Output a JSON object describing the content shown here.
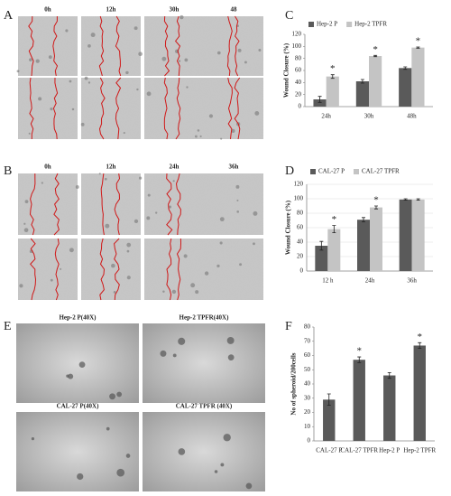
{
  "panel_labels": [
    "A",
    "B",
    "C",
    "D",
    "E",
    "F"
  ],
  "panel_a": {
    "time_labels": [
      "0h",
      "12h",
      "30h",
      "48"
    ]
  },
  "panel_b": {
    "time_labels": [
      "0h",
      "12h",
      "24h",
      "36h"
    ]
  },
  "panel_e": {
    "image_labels": [
      "Hep-2 P(40X)",
      "Hep-2 TPFR(40X)",
      "CAL-27 P(40X)",
      "CAL-27 TPFR (40X)"
    ]
  },
  "chart_data": [
    {
      "type": "bar",
      "y_label": "Wound Closure (%)",
      "categories": [
        "24h",
        "30h",
        "48h"
      ],
      "series": [
        {
          "name": "Hep-2 P",
          "color": "#5a5a5a",
          "values": [
            12,
            42,
            64
          ],
          "errors": [
            5,
            3,
            2
          ]
        },
        {
          "name": "Hep-2 TPFR",
          "color": "#c4c4c4",
          "values": [
            50,
            84,
            98
          ],
          "errors": [
            3,
            1,
            1
          ]
        }
      ],
      "annotations": [
        {
          "text": "*",
          "x": "24h",
          "series": "Hep-2 TPFR"
        },
        {
          "text": "*",
          "x": "30h",
          "series": "Hep-2 TPFR"
        },
        {
          "text": "*",
          "x": "48h",
          "series": "Hep-2 TPFR"
        }
      ],
      "ylim": [
        0,
        120
      ],
      "yticks": [
        0,
        20,
        40,
        60,
        80,
        100,
        120
      ],
      "grid": false,
      "legend": "top"
    },
    {
      "type": "bar",
      "y_label": "Wound Closure (%)",
      "categories": [
        "12 h",
        "24h",
        "36h"
      ],
      "series": [
        {
          "name": "CAL-27 P",
          "color": "#5a5a5a",
          "values": [
            35,
            71,
            99
          ],
          "errors": [
            6,
            3,
            1
          ]
        },
        {
          "name": "CAL-27 TPFR",
          "color": "#c4c4c4",
          "values": [
            58,
            88,
            99
          ],
          "errors": [
            5,
            2,
            1
          ]
        }
      ],
      "annotations": [
        {
          "text": "*",
          "x": "12 h",
          "series": "CAL-27 TPFR"
        },
        {
          "text": "*",
          "x": "24h",
          "series": "CAL-27 TPFR"
        }
      ],
      "ylim": [
        0,
        120
      ],
      "yticks": [
        0,
        20,
        40,
        60,
        80,
        100,
        120
      ],
      "grid": true,
      "legend": "top"
    },
    {
      "type": "bar",
      "y_label": "No of spheroid/200cells",
      "categories": [
        "CAL-27 P",
        "CAL-27 TPFR",
        "Hep-2 P",
        "Hep-2 TPFR"
      ],
      "values": [
        29,
        57,
        46,
        67
      ],
      "errors": [
        4,
        2,
        2,
        2
      ],
      "color": "#5a5a5a",
      "annotations": [
        {
          "text": "*",
          "x": "CAL-27 TPFR"
        },
        {
          "text": "*",
          "x": "Hep-2 TPFR"
        }
      ],
      "ylim": [
        0,
        80
      ],
      "yticks": [
        0,
        10,
        20,
        30,
        40,
        50,
        60,
        70,
        80
      ],
      "grid": false
    }
  ]
}
